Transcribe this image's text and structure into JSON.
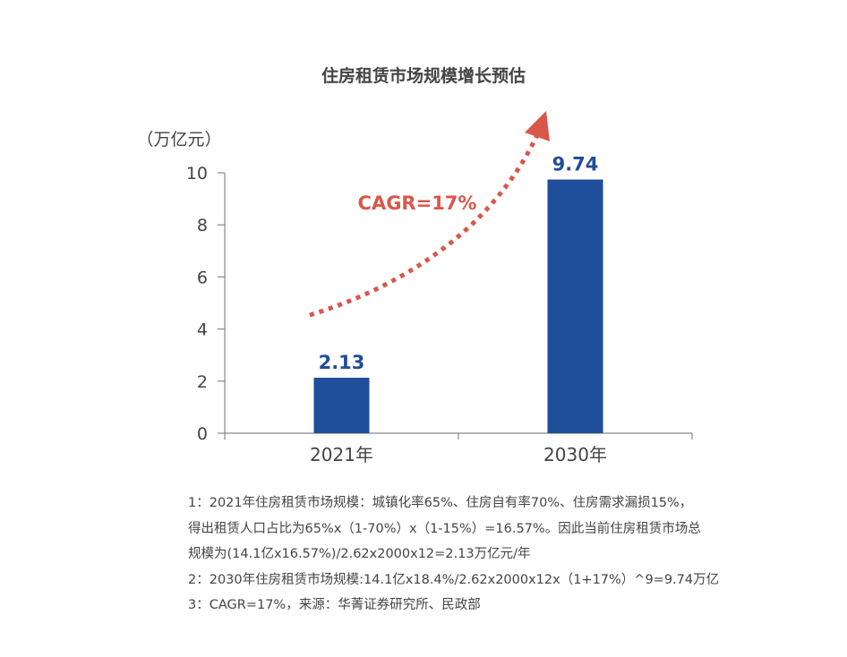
{
  "chart_data": {
    "type": "bar",
    "title": "住房租赁市场规模增长预估",
    "unit": "（万亿元）",
    "categories": [
      "2021年",
      "2030年"
    ],
    "values": [
      2.13,
      9.74
    ],
    "data_labels": [
      "2.13",
      "9.74"
    ],
    "ylim": [
      0,
      10
    ],
    "yticks": [
      "0",
      "2",
      "4",
      "6",
      "8",
      "10"
    ],
    "annotation": "CAGR=17%",
    "grid": false,
    "bar_color": "#1f4e9a",
    "arrow_color": "#d9574a"
  },
  "notes": [
    "1：2021年住房租赁市场规模：城镇化率65%、住房自有率70%、住房需求漏损15%，",
    "得出租赁人口占比为65%x（1-70%）x（1-15%）=16.57%。因此当前住房租赁市场总",
    "规模为(14.1亿x16.57%)/2.62x2000x12=2.13万亿元/年",
    "2：2030年住房租赁市场规模:14.1亿x18.4%/2.62x2000x12x（1+17%）^9=9.74万亿",
    "3：CAGR=17%，来源：华菁证券研究所、民政部"
  ]
}
